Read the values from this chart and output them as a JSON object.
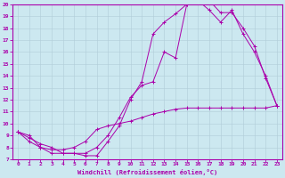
{
  "xlabel": "Windchill (Refroidissement éolien,°C)",
  "xlim": [
    -0.5,
    23.5
  ],
  "ylim": [
    7,
    20
  ],
  "yticks": [
    7,
    8,
    9,
    10,
    11,
    12,
    13,
    14,
    15,
    16,
    17,
    18,
    19,
    20
  ],
  "xticks": [
    0,
    1,
    2,
    3,
    4,
    5,
    6,
    7,
    8,
    9,
    10,
    11,
    12,
    13,
    14,
    15,
    16,
    17,
    18,
    19,
    20,
    21,
    22,
    23
  ],
  "bg_color": "#cce8f0",
  "grid_color": "#b0ccd8",
  "line_color": "#aa00aa",
  "line1_x": [
    0,
    1,
    2,
    3,
    4,
    5,
    6,
    7,
    8,
    9,
    10,
    11,
    12,
    13,
    14,
    15,
    16,
    17,
    18,
    19,
    20,
    21,
    22,
    23
  ],
  "line1_y": [
    9.3,
    9.0,
    8.0,
    7.5,
    7.5,
    7.5,
    7.3,
    7.3,
    8.5,
    9.8,
    12.0,
    13.5,
    17.5,
    18.5,
    19.2,
    20.0,
    20.2,
    20.3,
    19.3,
    19.3,
    18.0,
    16.5,
    13.8,
    11.5
  ],
  "line2_x": [
    0,
    1,
    2,
    3,
    4,
    5,
    6,
    7,
    8,
    9,
    10,
    11,
    12,
    13,
    14,
    15,
    16,
    17,
    18,
    19,
    20,
    21,
    22,
    23
  ],
  "line2_y": [
    9.3,
    8.8,
    8.3,
    8.0,
    7.5,
    7.5,
    7.5,
    8.0,
    9.0,
    10.5,
    12.2,
    13.2,
    13.5,
    16.0,
    15.5,
    20.0,
    20.3,
    19.5,
    18.5,
    19.5,
    17.5,
    16.0,
    14.0,
    11.5
  ],
  "line3_x": [
    0,
    1,
    2,
    3,
    4,
    5,
    6,
    7,
    8,
    9,
    10,
    11,
    12,
    13,
    14,
    15,
    16,
    17,
    18,
    19,
    20,
    21,
    22,
    23
  ],
  "line3_y": [
    9.3,
    8.5,
    8.0,
    7.8,
    7.8,
    8.0,
    8.5,
    9.5,
    9.8,
    10.0,
    10.2,
    10.5,
    10.8,
    11.0,
    11.2,
    11.3,
    11.3,
    11.3,
    11.3,
    11.3,
    11.3,
    11.3,
    11.3,
    11.5
  ]
}
